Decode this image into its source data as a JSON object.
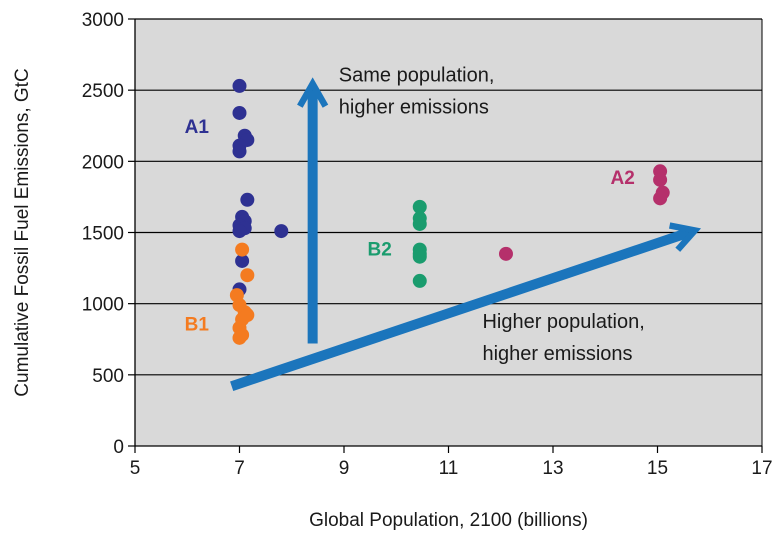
{
  "chart_data": {
    "type": "scatter",
    "xlabel": "Global Population, 2100 (billions)",
    "ylabel": "Cumulative Fossil Fuel Emissions, GtC",
    "xlim": [
      5,
      17
    ],
    "ylim": [
      0,
      3000
    ],
    "xticks": [
      5,
      7,
      9,
      11,
      13,
      15,
      17
    ],
    "yticks": [
      0,
      500,
      1000,
      1500,
      2000,
      2500,
      3000
    ],
    "grid": "horizontal",
    "plot_background": "#d9d9d9",
    "series": [
      {
        "name": "A1",
        "color": "#2e3192",
        "points": [
          [
            7.0,
            2530
          ],
          [
            7.0,
            2340
          ],
          [
            7.1,
            2180
          ],
          [
            7.15,
            2150
          ],
          [
            7.0,
            2110
          ],
          [
            7.0,
            2070
          ],
          [
            7.15,
            1730
          ],
          [
            7.05,
            1610
          ],
          [
            7.1,
            1580
          ],
          [
            7.0,
            1550
          ],
          [
            7.1,
            1530
          ],
          [
            7.0,
            1510
          ],
          [
            7.8,
            1510
          ],
          [
            7.05,
            1300
          ],
          [
            7.0,
            1100
          ]
        ]
      },
      {
        "name": "B1",
        "color": "#f47b20",
        "points": [
          [
            7.05,
            1380
          ],
          [
            7.15,
            1200
          ],
          [
            6.95,
            1060
          ],
          [
            7.0,
            990
          ],
          [
            7.1,
            940
          ],
          [
            7.05,
            890
          ],
          [
            7.15,
            920
          ],
          [
            7.0,
            830
          ],
          [
            7.05,
            780
          ],
          [
            7.0,
            760
          ]
        ]
      },
      {
        "name": "B2",
        "color": "#1a9c6e",
        "points": [
          [
            10.45,
            1680
          ],
          [
            10.45,
            1600
          ],
          [
            10.45,
            1560
          ],
          [
            10.45,
            1380
          ],
          [
            10.45,
            1350
          ],
          [
            10.45,
            1330
          ],
          [
            10.45,
            1160
          ]
        ]
      },
      {
        "name": "A2",
        "color": "#b5306b",
        "points": [
          [
            15.05,
            1930
          ],
          [
            15.05,
            1870
          ],
          [
            15.1,
            1780
          ],
          [
            15.05,
            1740
          ],
          [
            12.1,
            1350
          ]
        ]
      }
    ],
    "series_labels": [
      {
        "text": "A1",
        "x": 5.95,
        "y": 2200,
        "color": "#2e3192"
      },
      {
        "text": "B1",
        "x": 5.95,
        "y": 810,
        "color": "#f47b20"
      },
      {
        "text": "B2",
        "x": 9.45,
        "y": 1340,
        "color": "#1a9c6e"
      },
      {
        "text": "A2",
        "x": 14.1,
        "y": 1840,
        "color": "#b5306b"
      }
    ],
    "arrows": [
      {
        "from": [
          8.4,
          720
        ],
        "to": [
          8.4,
          2500
        ],
        "color": "#1b75bc"
      },
      {
        "from": [
          6.85,
          420
        ],
        "to": [
          15.6,
          1500
        ],
        "color": "#1b75bc"
      }
    ],
    "annotations": [
      {
        "lines": [
          "Same population,",
          "higher emissions"
        ],
        "x": 8.9,
        "y": 2560
      },
      {
        "lines": [
          "Higher population,",
          "higher emissions"
        ],
        "x": 11.65,
        "y": 830
      }
    ]
  }
}
